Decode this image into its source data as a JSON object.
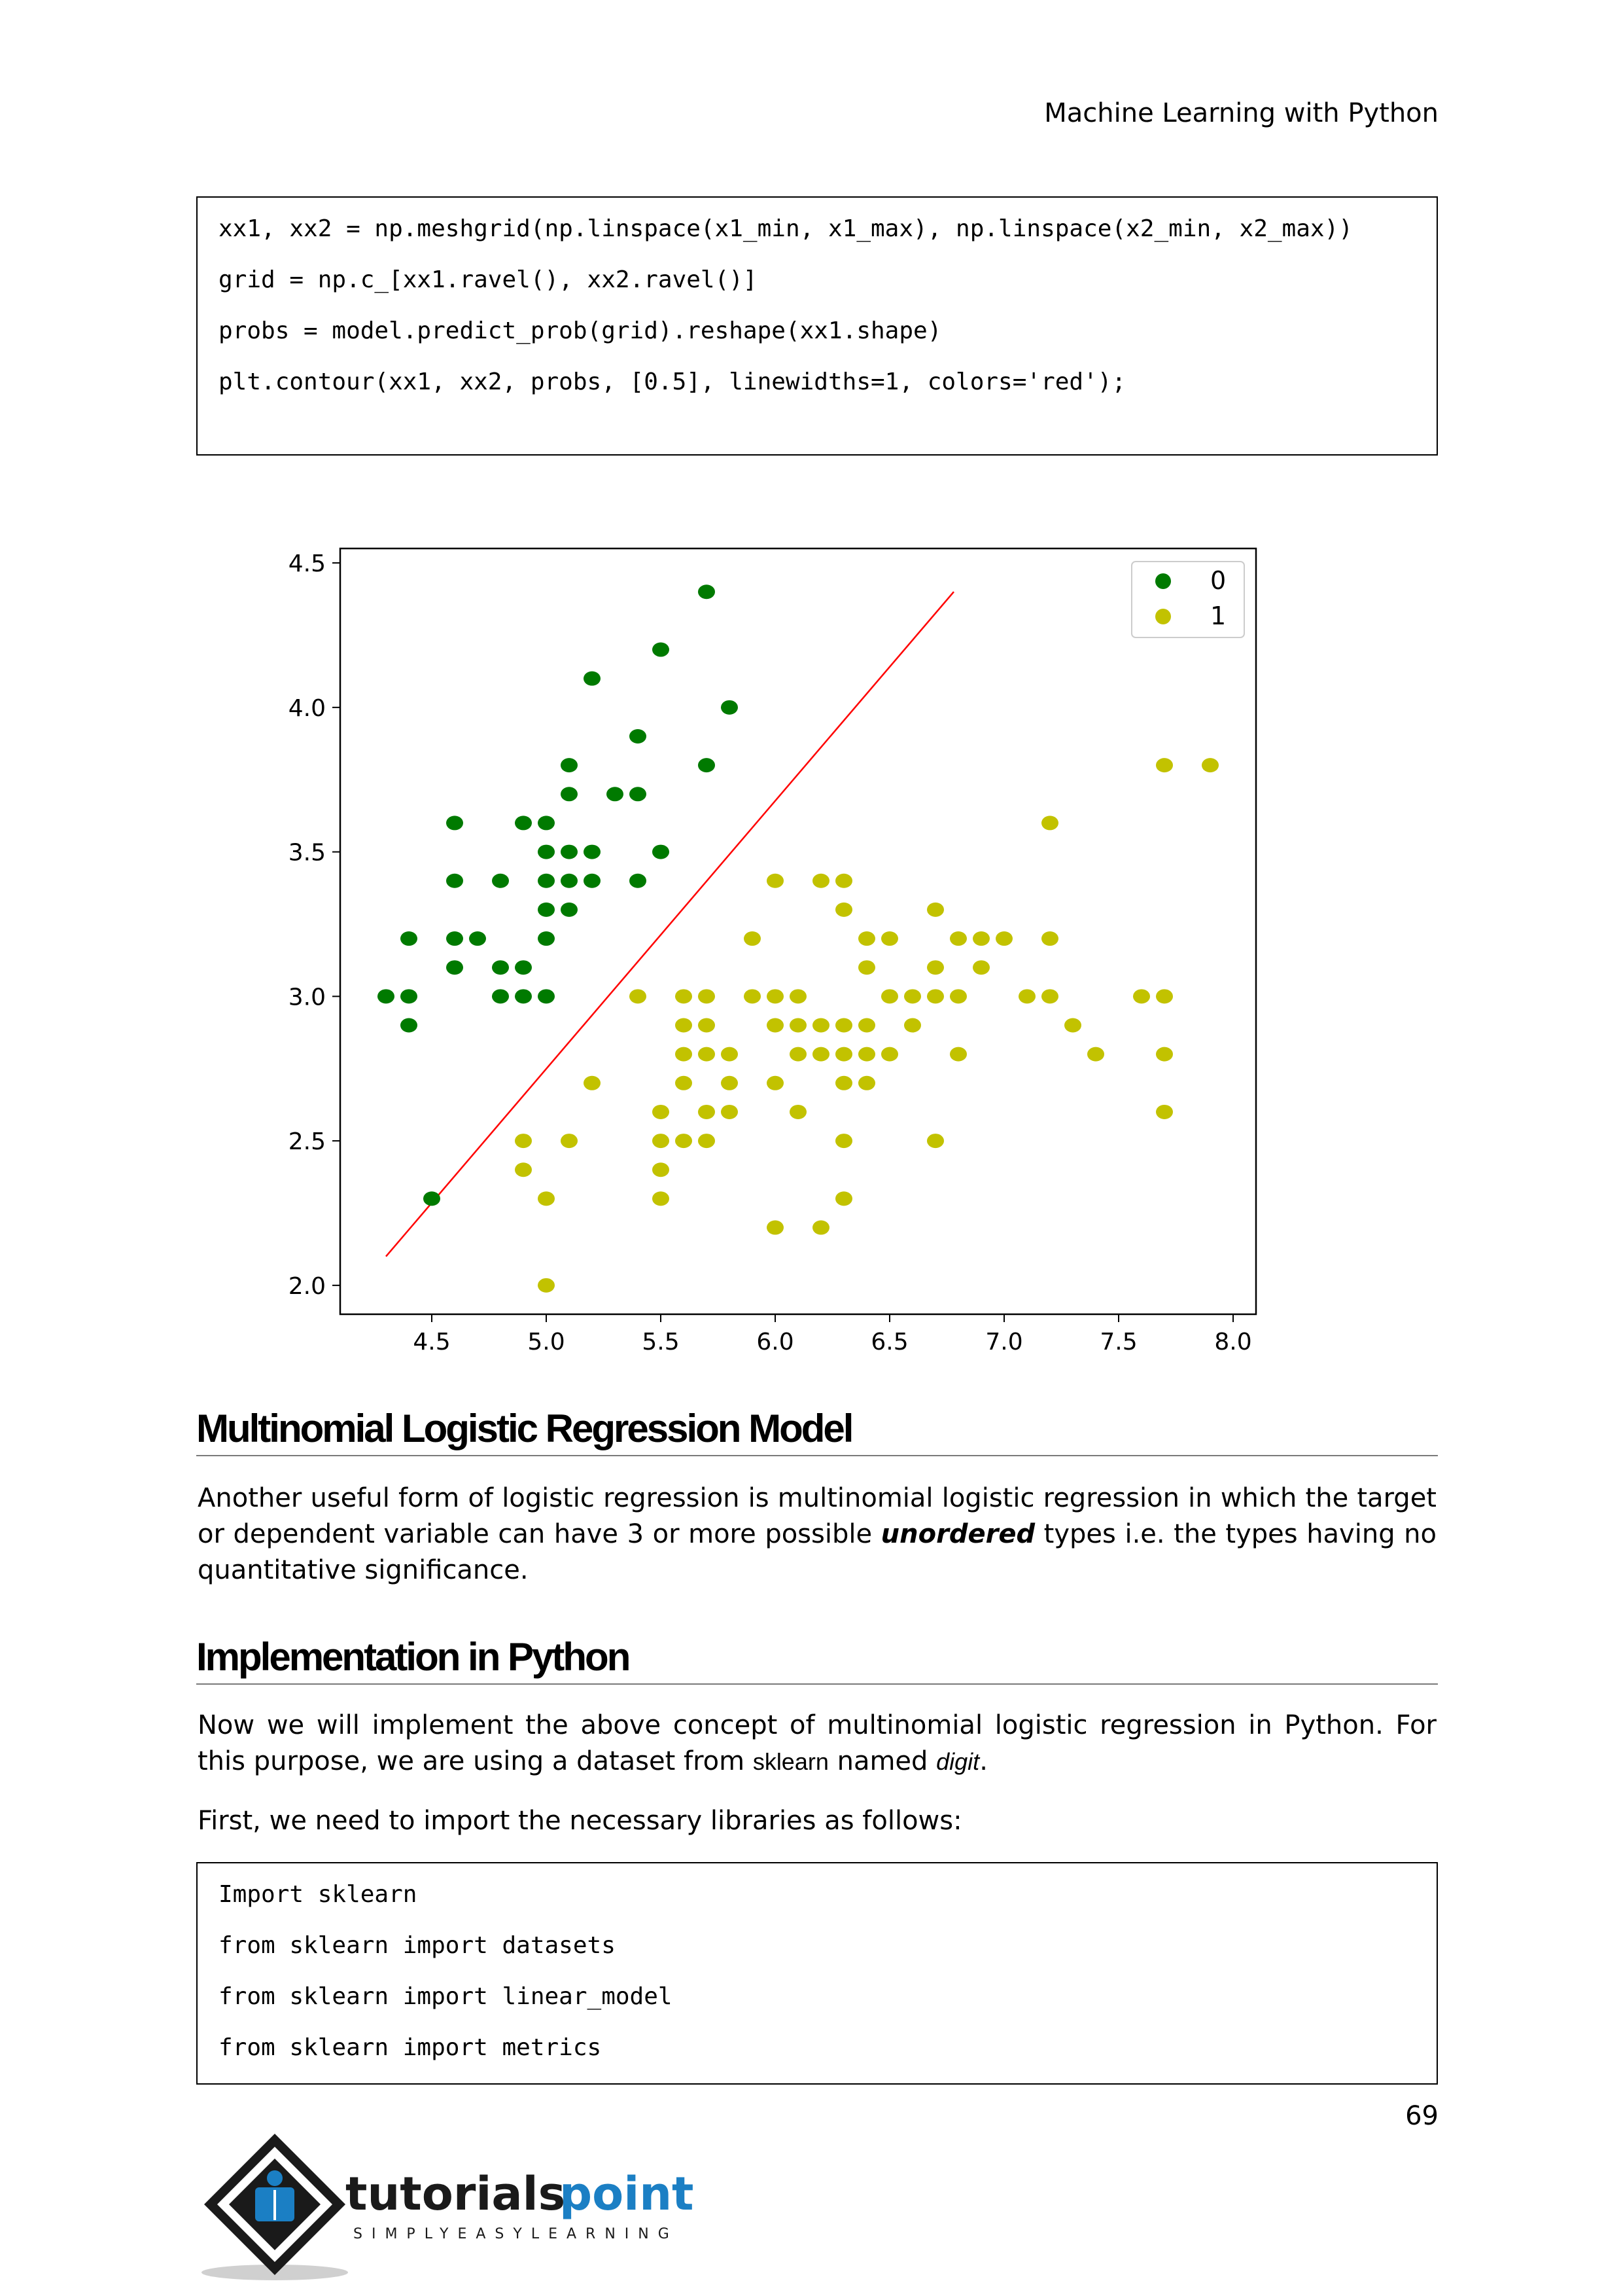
{
  "header": {
    "title": "Machine Learning with Python"
  },
  "code1": {
    "lines": [
      "xx1, xx2 = np.meshgrid(np.linspace(x1_min, x1_max), np.linspace(x2_min, x2_max))",
      "grid = np.c_[xx1.ravel(), xx2.ravel()]",
      "probs = model.predict_prob(grid).reshape(xx1.shape)",
      "plt.contour(xx1, xx2, probs, [0.5], linewidths=1, colors='red');"
    ]
  },
  "chart_data": {
    "type": "scatter",
    "xlim": [
      4.1,
      8.1
    ],
    "ylim": [
      1.9,
      4.55
    ],
    "xticks": [
      4.5,
      5.0,
      5.5,
      6.0,
      6.5,
      7.0,
      7.5,
      8.0
    ],
    "yticks": [
      2.0,
      2.5,
      3.0,
      3.5,
      4.0,
      4.5
    ],
    "xtick_labels": [
      "4.5",
      "5.0",
      "5.5",
      "6.0",
      "6.5",
      "7.0",
      "7.5",
      "8.0"
    ],
    "ytick_labels": [
      "2.0",
      "2.5",
      "3.0",
      "3.5",
      "4.0",
      "4.5"
    ],
    "legend": {
      "position": "top-right",
      "entries": [
        "0",
        "1"
      ]
    },
    "grid": false,
    "series": [
      {
        "name": "0",
        "color": "#007a00",
        "points": [
          [
            5.7,
            4.4
          ],
          [
            5.5,
            4.2
          ],
          [
            5.2,
            4.1
          ],
          [
            5.8,
            4.0
          ],
          [
            5.4,
            3.9
          ],
          [
            5.1,
            3.8
          ],
          [
            5.7,
            3.8
          ],
          [
            5.1,
            3.7
          ],
          [
            5.3,
            3.7
          ],
          [
            5.4,
            3.7
          ],
          [
            4.6,
            3.6
          ],
          [
            4.9,
            3.6
          ],
          [
            5.0,
            3.6
          ],
          [
            5.0,
            3.5
          ],
          [
            5.1,
            3.5
          ],
          [
            5.2,
            3.5
          ],
          [
            5.5,
            3.5
          ],
          [
            4.6,
            3.4
          ],
          [
            4.8,
            3.4
          ],
          [
            5.0,
            3.4
          ],
          [
            5.1,
            3.4
          ],
          [
            5.2,
            3.4
          ],
          [
            5.4,
            3.4
          ],
          [
            5.0,
            3.3
          ],
          [
            5.1,
            3.3
          ],
          [
            4.4,
            3.2
          ],
          [
            4.6,
            3.2
          ],
          [
            4.7,
            3.2
          ],
          [
            5.0,
            3.2
          ],
          [
            4.6,
            3.1
          ],
          [
            4.8,
            3.1
          ],
          [
            4.9,
            3.1
          ],
          [
            4.3,
            3.0
          ],
          [
            4.4,
            3.0
          ],
          [
            4.8,
            3.0
          ],
          [
            4.9,
            3.0
          ],
          [
            5.0,
            3.0
          ],
          [
            4.4,
            2.9
          ],
          [
            4.5,
            2.3
          ]
        ]
      },
      {
        "name": "1",
        "color": "#c2c200",
        "points": [
          [
            7.7,
            3.8
          ],
          [
            7.9,
            3.8
          ],
          [
            7.2,
            3.6
          ],
          [
            6.0,
            3.4
          ],
          [
            6.2,
            3.4
          ],
          [
            6.3,
            3.4
          ],
          [
            6.3,
            3.3
          ],
          [
            6.7,
            3.3
          ],
          [
            5.9,
            3.2
          ],
          [
            6.4,
            3.2
          ],
          [
            6.5,
            3.2
          ],
          [
            6.8,
            3.2
          ],
          [
            6.9,
            3.2
          ],
          [
            7.0,
            3.2
          ],
          [
            7.2,
            3.2
          ],
          [
            6.4,
            3.1
          ],
          [
            6.7,
            3.1
          ],
          [
            6.9,
            3.1
          ],
          [
            5.4,
            3.0
          ],
          [
            5.6,
            3.0
          ],
          [
            5.7,
            3.0
          ],
          [
            5.9,
            3.0
          ],
          [
            6.0,
            3.0
          ],
          [
            6.1,
            3.0
          ],
          [
            6.5,
            3.0
          ],
          [
            6.6,
            3.0
          ],
          [
            6.7,
            3.0
          ],
          [
            6.8,
            3.0
          ],
          [
            7.1,
            3.0
          ],
          [
            7.2,
            3.0
          ],
          [
            7.6,
            3.0
          ],
          [
            7.7,
            3.0
          ],
          [
            5.6,
            2.9
          ],
          [
            5.7,
            2.9
          ],
          [
            6.0,
            2.9
          ],
          [
            6.1,
            2.9
          ],
          [
            6.2,
            2.9
          ],
          [
            6.3,
            2.9
          ],
          [
            6.4,
            2.9
          ],
          [
            6.6,
            2.9
          ],
          [
            7.3,
            2.9
          ],
          [
            5.6,
            2.8
          ],
          [
            5.7,
            2.8
          ],
          [
            5.8,
            2.8
          ],
          [
            6.1,
            2.8
          ],
          [
            6.2,
            2.8
          ],
          [
            6.3,
            2.8
          ],
          [
            6.4,
            2.8
          ],
          [
            6.5,
            2.8
          ],
          [
            6.8,
            2.8
          ],
          [
            7.4,
            2.8
          ],
          [
            7.7,
            2.8
          ],
          [
            5.2,
            2.7
          ],
          [
            5.6,
            2.7
          ],
          [
            5.8,
            2.7
          ],
          [
            6.0,
            2.7
          ],
          [
            6.3,
            2.7
          ],
          [
            6.4,
            2.7
          ],
          [
            5.5,
            2.6
          ],
          [
            5.7,
            2.6
          ],
          [
            5.8,
            2.6
          ],
          [
            6.1,
            2.6
          ],
          [
            7.7,
            2.6
          ],
          [
            4.9,
            2.5
          ],
          [
            5.1,
            2.5
          ],
          [
            5.5,
            2.5
          ],
          [
            5.6,
            2.5
          ],
          [
            5.7,
            2.5
          ],
          [
            6.3,
            2.5
          ],
          [
            6.7,
            2.5
          ],
          [
            4.9,
            2.4
          ],
          [
            5.5,
            2.4
          ],
          [
            5.0,
            2.3
          ],
          [
            5.5,
            2.3
          ],
          [
            6.3,
            2.3
          ],
          [
            6.0,
            2.2
          ],
          [
            6.2,
            2.2
          ],
          [
            5.0,
            2.0
          ]
        ]
      }
    ],
    "decision_boundary": {
      "color": "red",
      "from": [
        4.3,
        2.1
      ],
      "to": [
        6.78,
        4.4
      ]
    }
  },
  "section1": {
    "heading": "Multinomial Logistic Regression Model",
    "para_before": "Another useful form of logistic regression is multinomial logistic regression in which the target or dependent variable can have 3 or more possible ",
    "para_emph": "unordered",
    "para_after": " types i.e. the types having no quantitative significance."
  },
  "section2": {
    "heading": "Implementation in Python",
    "para1_before": " Now we will implement the above concept of multinomial logistic regression in Python. For this purpose, we are using a dataset from ",
    "para1_sk": "sklearn",
    "para1_mid": " named ",
    "para1_digit": "digit",
    "para1_end": ".",
    "para2": "First, we need to import the necessary libraries as follows:"
  },
  "code2": {
    "lines": [
      "Import sklearn",
      "from sklearn import datasets",
      "from sklearn import linear_model",
      "from sklearn import metrics"
    ]
  },
  "footer": {
    "page_number": "69",
    "logo_text_main": "tutorials",
    "logo_text_accent": "point",
    "logo_tagline": "SIMPLYEASYLEARNING",
    "colors": {
      "logo_dark": "#1a1a1a",
      "logo_blue": "#1b7fc4"
    }
  }
}
